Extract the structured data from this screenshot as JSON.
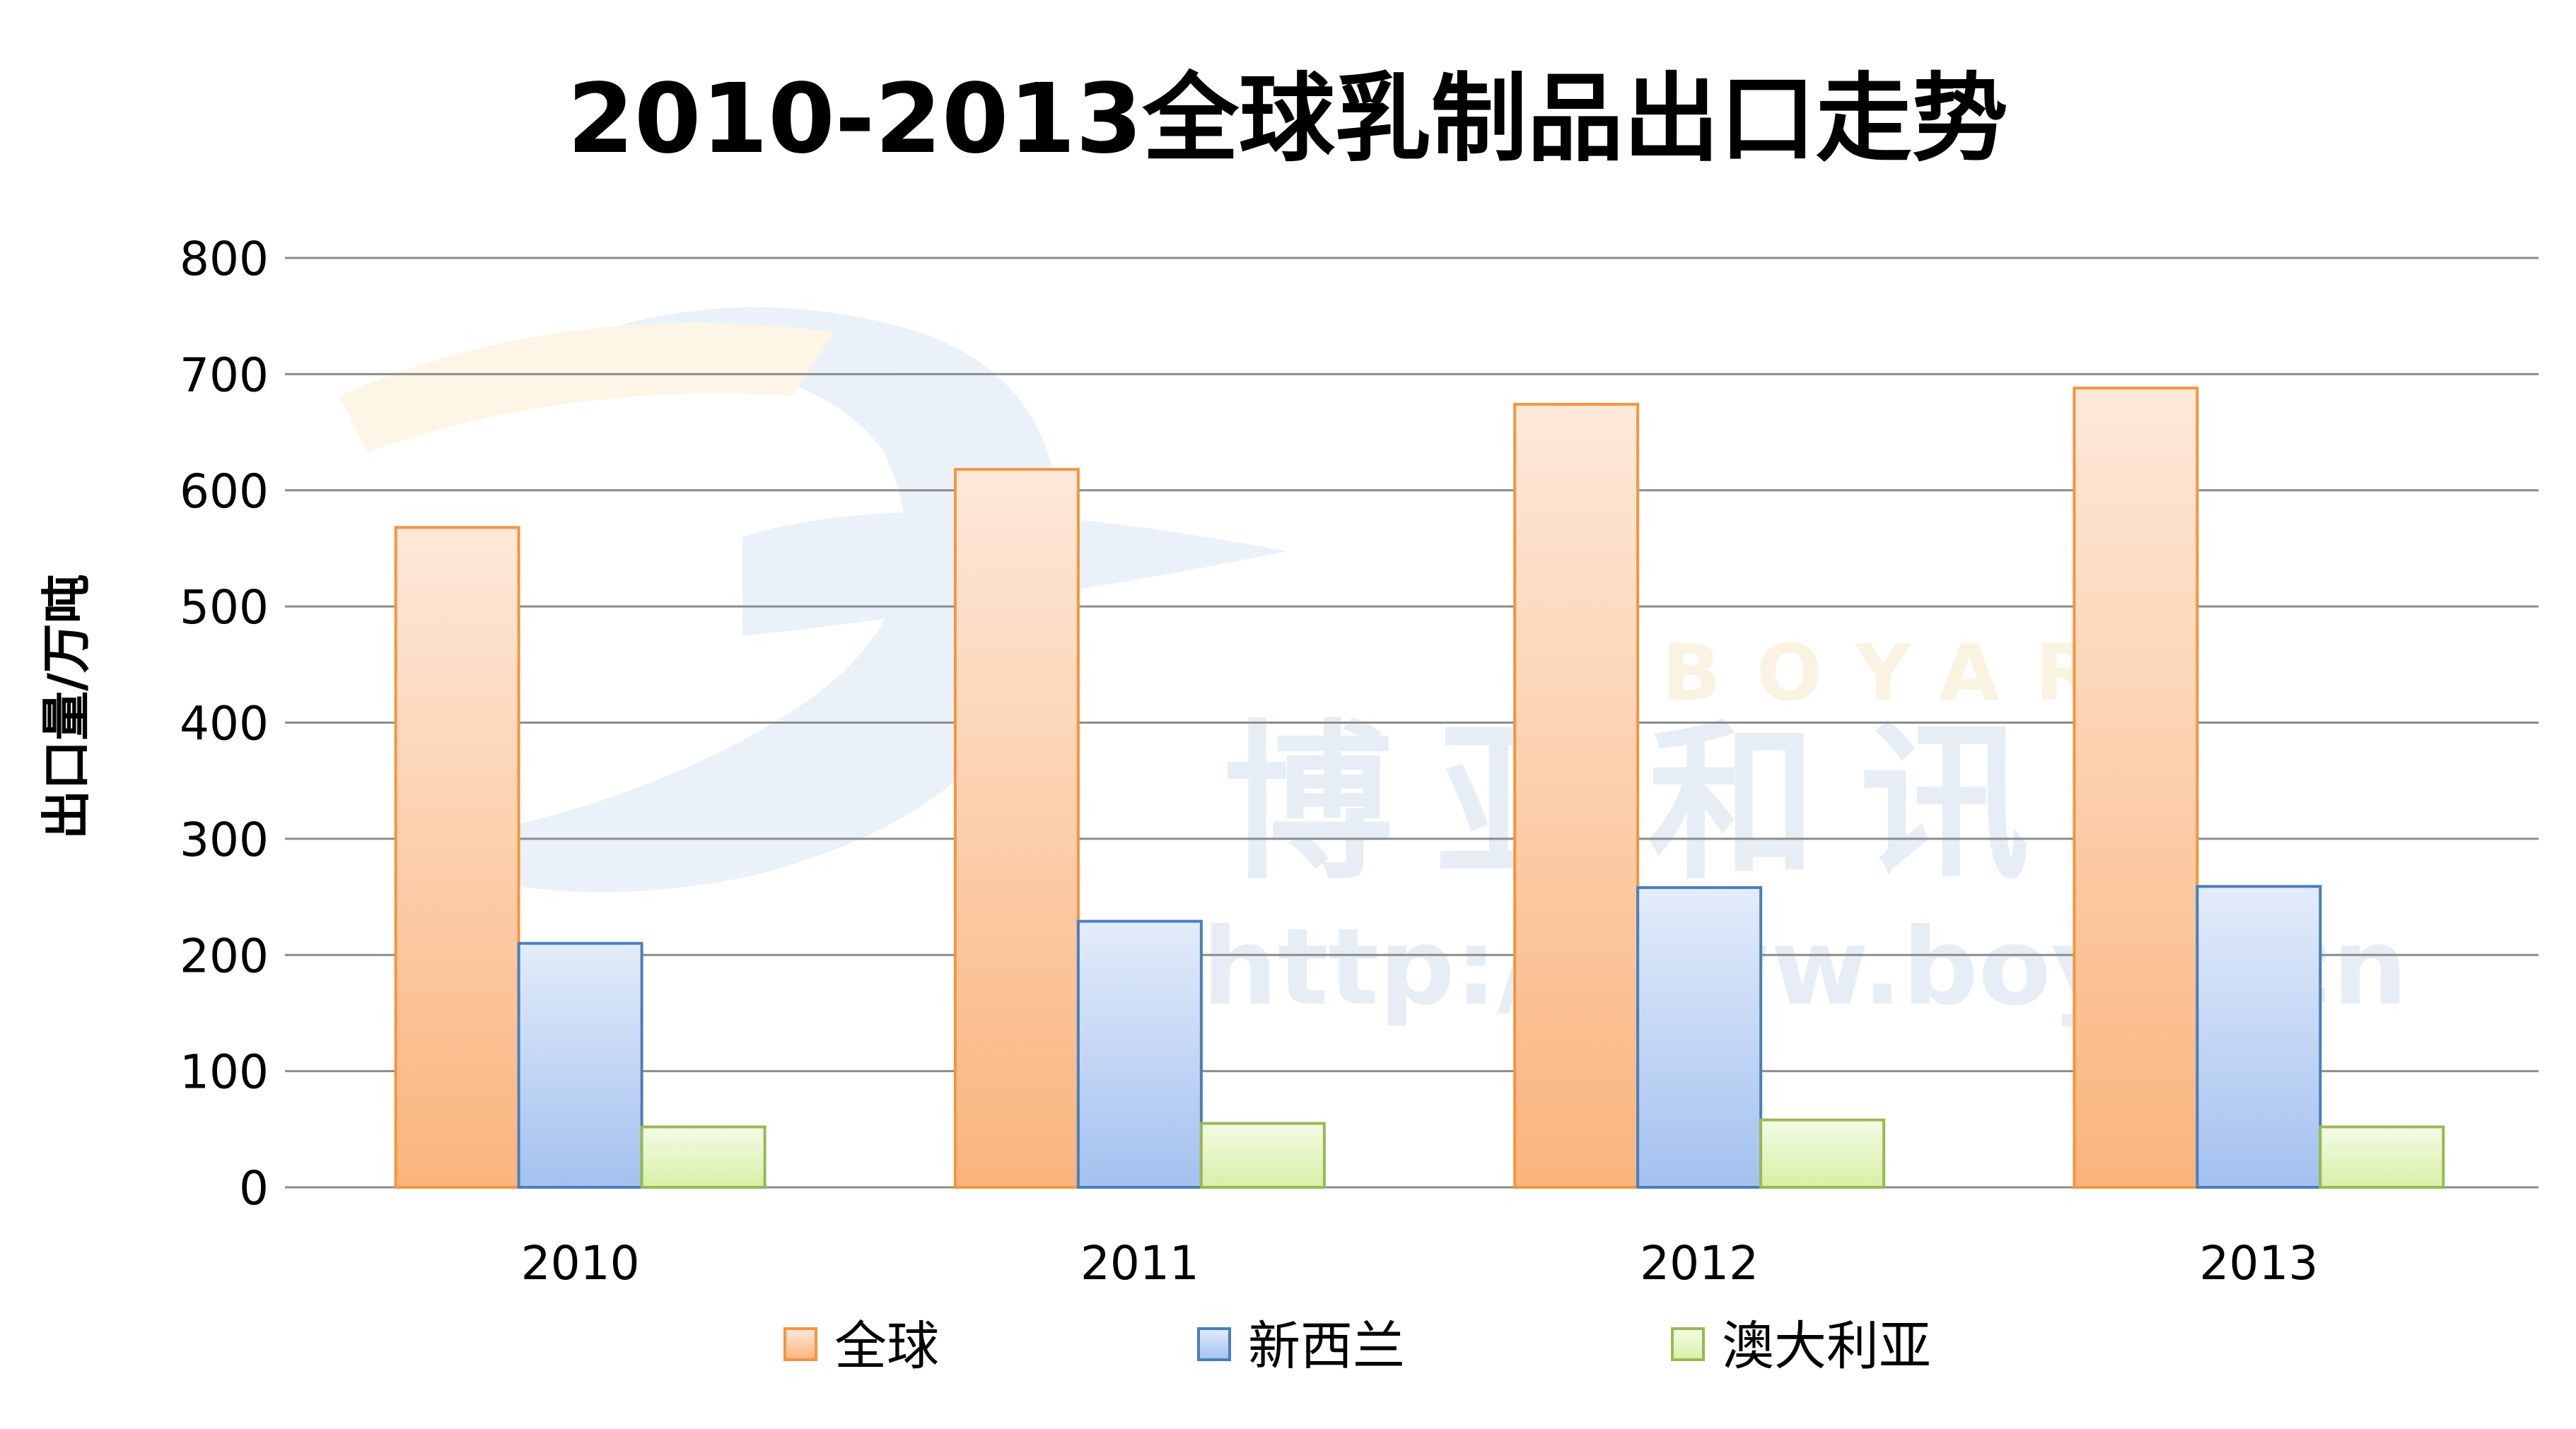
{
  "chart_data": {
    "type": "bar",
    "title": "2010-2013全球乳制品出口走势",
    "ylabel": "出口量/万吨",
    "xlabel": "",
    "categories": [
      "2010",
      "2011",
      "2012",
      "2013"
    ],
    "ylim": [
      0,
      800
    ],
    "yticks": [
      0,
      100,
      200,
      300,
      400,
      500,
      600,
      700,
      800
    ],
    "grid": true,
    "legend_position": "bottom",
    "series": [
      {
        "name": "全球",
        "values": [
          568,
          618,
          674,
          688
        ],
        "color": "#f79646"
      },
      {
        "name": "新西兰",
        "values": [
          210,
          229,
          258,
          259
        ],
        "color": "#4f81bd"
      },
      {
        "name": "澳大利亚",
        "values": [
          52,
          55,
          58,
          52
        ],
        "color": "#9bbb59"
      }
    ]
  },
  "watermark": {
    "text": "博亚和讯",
    "url": "http://www.boyar.cn",
    "letters": "BOYAR"
  }
}
